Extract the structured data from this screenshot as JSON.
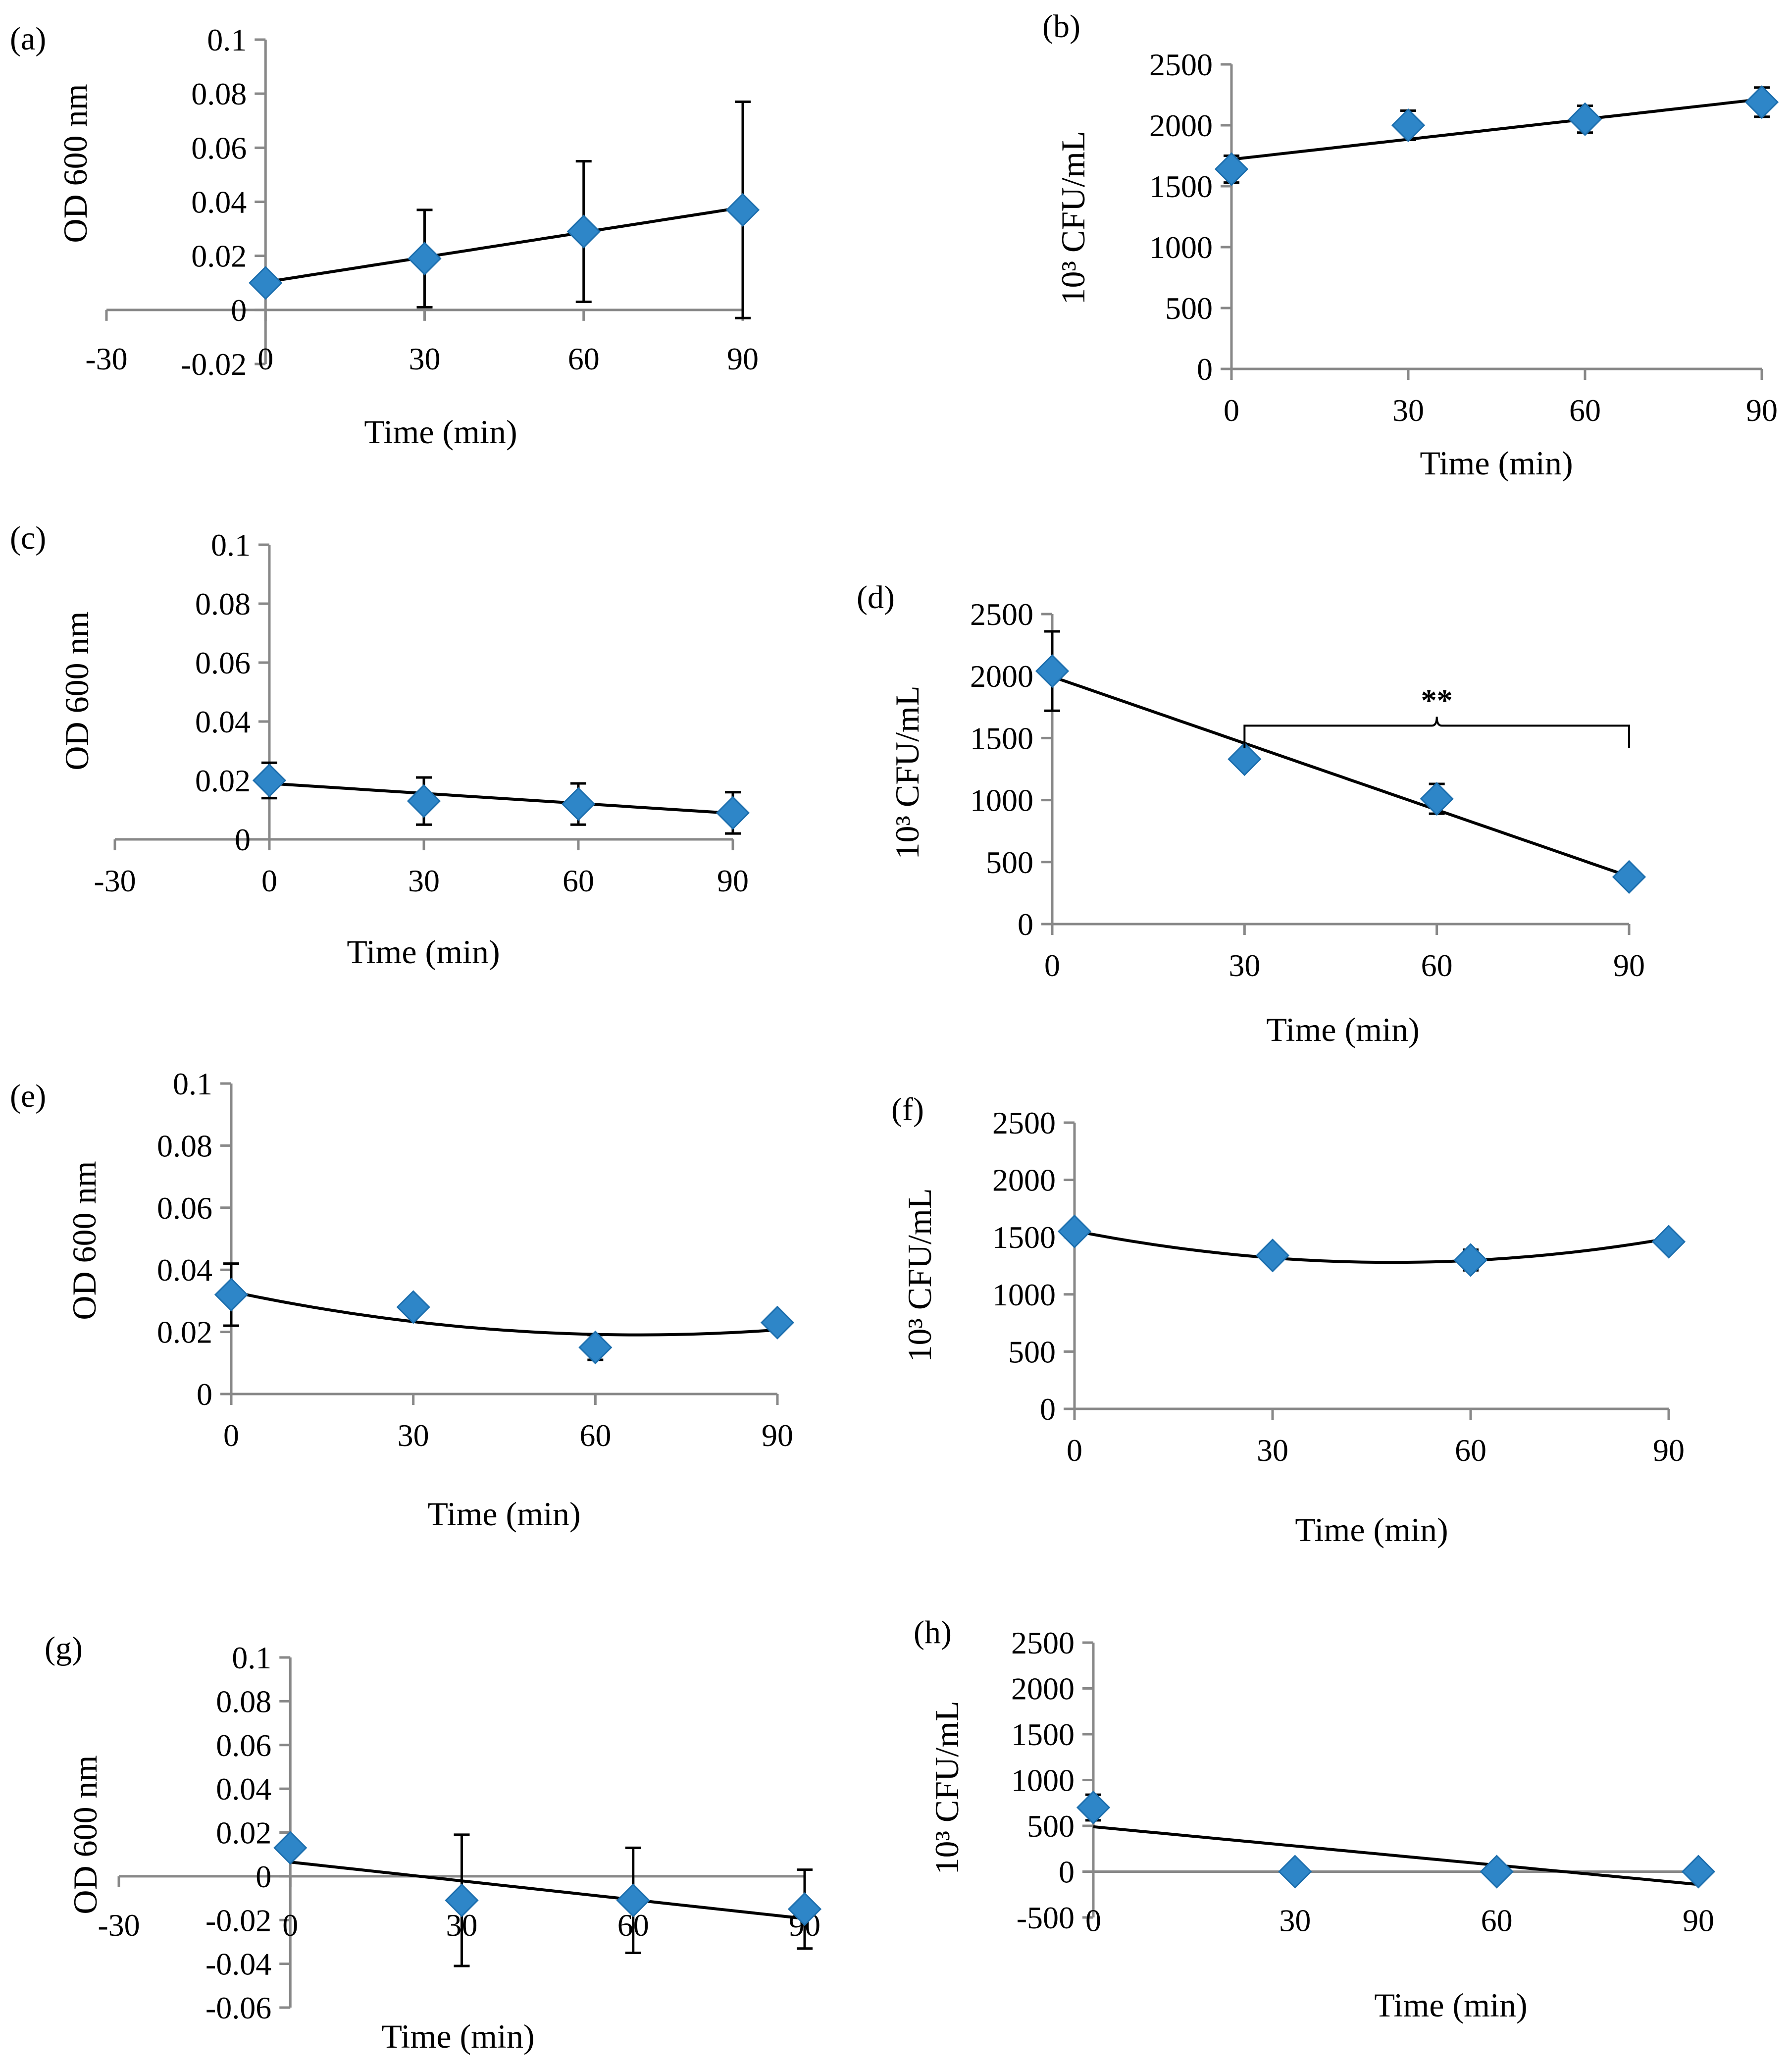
{
  "colors": {
    "marker": "#2E86C8",
    "marker_edge": "#1D6FAE",
    "axis": "#888888",
    "line": "#000000"
  },
  "chart_data": [
    {
      "id": "a",
      "panel_label": "(a)",
      "type": "scatter",
      "trendline": "linear",
      "xlabel": "Time (min)",
      "ylabel": "OD 600 nm",
      "xlim": [
        -30,
        90
      ],
      "ylim": [
        -0.02,
        0.1
      ],
      "y_axis_at_x": 0,
      "xticks": [
        -30,
        0,
        30,
        60,
        90
      ],
      "xtick_labels": [
        "-30",
        "0",
        "30",
        "60",
        "90"
      ],
      "yticks": [
        -0.02,
        0,
        0.02,
        0.04,
        0.06,
        0.08,
        0.1
      ],
      "ytick_labels": [
        "-0.02",
        "0",
        "0.02",
        "0.04",
        "0.06",
        "0.08",
        "0.1"
      ],
      "x": [
        0,
        30,
        60,
        90
      ],
      "y": [
        0.01,
        0.019,
        0.029,
        0.037
      ],
      "err": [
        0,
        0.018,
        0.026,
        0.04
      ],
      "fit": [
        0.0103,
        0.000307
      ]
    },
    {
      "id": "b",
      "panel_label": "(b)",
      "type": "scatter",
      "trendline": "linear",
      "xlabel": "Time (min)",
      "ylabel": "10³ CFU/mL",
      "xlim": [
        0,
        90
      ],
      "ylim": [
        0,
        2500
      ],
      "y_axis_at_x": 0,
      "xticks": [
        0,
        30,
        60,
        90
      ],
      "xtick_labels": [
        "0",
        "30",
        "60",
        "90"
      ],
      "yticks": [
        0,
        500,
        1000,
        1500,
        2000,
        2500
      ],
      "ytick_labels": [
        "0",
        "500",
        "1000",
        "1500",
        "2000",
        "2500"
      ],
      "x": [
        0,
        30,
        60,
        90
      ],
      "y": [
        1640,
        2000,
        2050,
        2190
      ],
      "err": [
        110,
        120,
        110,
        120
      ],
      "fit": [
        1720,
        5.5
      ]
    },
    {
      "id": "c",
      "panel_label": "(c)",
      "type": "scatter",
      "trendline": "linear",
      "xlabel": "Time (min)",
      "ylabel": "OD 600 nm",
      "xlim": [
        -30,
        90
      ],
      "ylim": [
        0,
        0.1
      ],
      "y_axis_at_x": 0,
      "xticks": [
        -30,
        0,
        30,
        60,
        90
      ],
      "xtick_labels": [
        "-30",
        "0",
        "30",
        "60",
        "90"
      ],
      "yticks": [
        0,
        0.02,
        0.04,
        0.06,
        0.08,
        0.1
      ],
      "ytick_labels": [
        "0",
        "0.02",
        "0.04",
        "0.06",
        "0.08",
        "0.1"
      ],
      "x": [
        0,
        30,
        60,
        90
      ],
      "y": [
        0.02,
        0.013,
        0.012,
        0.009
      ],
      "err": [
        0.006,
        0.008,
        0.007,
        0.007
      ],
      "fit": [
        0.019,
        -0.000113
      ]
    },
    {
      "id": "d",
      "panel_label": "(d)",
      "type": "scatter",
      "trendline": "linear",
      "xlabel": "Time (min)",
      "ylabel": "10³ CFU/mL",
      "xlim": [
        0,
        90
      ],
      "ylim": [
        0,
        2500
      ],
      "y_axis_at_x": 0,
      "xticks": [
        0,
        30,
        60,
        90
      ],
      "xtick_labels": [
        "0",
        "30",
        "60",
        "90"
      ],
      "yticks": [
        0,
        500,
        1000,
        1500,
        2000,
        2500
      ],
      "ytick_labels": [
        "0",
        "500",
        "1000",
        "1500",
        "2000",
        "2500"
      ],
      "x": [
        0,
        30,
        60,
        90
      ],
      "y": [
        2040,
        1330,
        1010,
        380
      ],
      "err": [
        320,
        30,
        120,
        20
      ],
      "fit": [
        1995,
        -17.9
      ],
      "annotation": {
        "text": "**",
        "from_x": 30,
        "to_x": 90,
        "at_y": 1600
      }
    },
    {
      "id": "e",
      "panel_label": "(e)",
      "type": "scatter",
      "trendline": "polynomial",
      "xlabel": "Time (min)",
      "ylabel": "OD 600 nm",
      "xlim": [
        0,
        90
      ],
      "ylim": [
        0,
        0.1
      ],
      "y_axis_at_x": 0,
      "xticks": [
        0,
        30,
        60,
        90
      ],
      "xtick_labels": [
        "0",
        "30",
        "60",
        "90"
      ],
      "yticks": [
        0,
        0.02,
        0.04,
        0.06,
        0.08,
        0.1
      ],
      "ytick_labels": [
        "0",
        "0.02",
        "0.04",
        "0.06",
        "0.08",
        "0.1"
      ],
      "x": [
        0,
        30,
        60,
        90
      ],
      "y": [
        0.032,
        0.028,
        0.015,
        0.023
      ],
      "err": [
        0.01,
        0.002,
        0.004,
        0.002
      ],
      "fit": [
        0.033,
        -0.000416,
        3.1e-06
      ]
    },
    {
      "id": "f",
      "panel_label": "(f)",
      "type": "scatter",
      "trendline": "polynomial",
      "xlabel": "Time (min)",
      "ylabel": "10³ CFU/mL",
      "xlim": [
        0,
        90
      ],
      "ylim": [
        0,
        2500
      ],
      "y_axis_at_x": 0,
      "xticks": [
        0,
        30,
        60,
        90
      ],
      "xtick_labels": [
        "0",
        "30",
        "60",
        "90"
      ],
      "yticks": [
        0,
        500,
        1000,
        1500,
        2000,
        2500
      ],
      "ytick_labels": [
        "0",
        "500",
        "1000",
        "1500",
        "2000",
        "2500"
      ],
      "x": [
        0,
        30,
        60,
        90
      ],
      "y": [
        1550,
        1340,
        1300,
        1460
      ],
      "err": [
        40,
        30,
        90,
        30
      ],
      "fit": [
        1555,
        -11.45,
        0.119
      ]
    },
    {
      "id": "g",
      "panel_label": "(g)",
      "type": "scatter",
      "trendline": "linear",
      "xlabel": "Time (min)",
      "ylabel": "OD 600 nm",
      "xlim": [
        -30,
        90
      ],
      "ylim": [
        -0.06,
        0.1
      ],
      "y_axis_at_x": 0,
      "xticks": [
        -30,
        0,
        30,
        60,
        90
      ],
      "xtick_labels": [
        "-30",
        "0",
        "30",
        "60",
        "90"
      ],
      "yticks": [
        -0.06,
        -0.04,
        -0.02,
        0,
        0.02,
        0.04,
        0.06,
        0.08,
        0.1
      ],
      "ytick_labels": [
        "-0.06",
        "-0.04",
        "-0.02",
        "0",
        "0.02",
        "0.04",
        "0.06",
        "0.08",
        "0.1"
      ],
      "x": [
        0,
        30,
        60,
        90
      ],
      "y": [
        0.013,
        -0.011,
        -0.011,
        -0.015
      ],
      "err": [
        0,
        0.03,
        0.024,
        0.018
      ],
      "fit": [
        0.0065,
        -0.000287
      ]
    },
    {
      "id": "h",
      "panel_label": "(h)",
      "type": "scatter",
      "trendline": "linear",
      "xlabel": "Time (min)",
      "ylabel": "10³ CFU/mL",
      "xlim": [
        0,
        90
      ],
      "ylim": [
        -500,
        2500
      ],
      "y_axis_at_x": 0,
      "xticks": [
        0,
        30,
        60,
        90
      ],
      "xtick_labels": [
        "0",
        "30",
        "60",
        "90"
      ],
      "yticks": [
        -500,
        0,
        500,
        1000,
        1500,
        2000,
        2500
      ],
      "ytick_labels": [
        "-500",
        "0",
        "500",
        "1000",
        "1500",
        "2000",
        "2500"
      ],
      "x": [
        0,
        30,
        60,
        90
      ],
      "y": [
        700,
        0,
        0,
        0
      ],
      "err": [
        140,
        0,
        0,
        0
      ],
      "fit": [
        490,
        -7.0
      ]
    }
  ]
}
